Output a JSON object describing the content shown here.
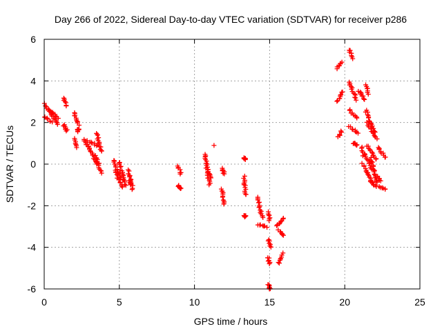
{
  "chart_data": {
    "type": "scatter",
    "title": "Day 266 of 2022, Sidereal Day-to-day VTEC variation (SDTVAR) for receiver p286",
    "xlabel": "GPS time / hours",
    "ylabel": "SDTVAR / TECUs",
    "xlim": [
      0,
      25
    ],
    "ylim": [
      -6,
      6
    ],
    "xticks": [
      0,
      5,
      10,
      15,
      20,
      25
    ],
    "yticks": [
      -6,
      -4,
      -2,
      0,
      2,
      4,
      6
    ],
    "xtick_labels": [
      "0",
      "5",
      "10",
      "15",
      "20",
      "25"
    ],
    "ytick_labels": [
      "-6",
      "-4",
      "-2",
      "0",
      "2",
      "4",
      "6"
    ],
    "grid": true,
    "marker": "+",
    "color": "#ff0000",
    "series": [
      {
        "name": "SDTVAR",
        "segments": [
          {
            "x0": 0.0,
            "x1": 0.5,
            "y0": 2.9,
            "y1": 2.4
          },
          {
            "x0": 0.0,
            "x1": 0.5,
            "y0": 2.3,
            "y1": 2.0
          },
          {
            "x0": 0.3,
            "x1": 0.9,
            "y0": 2.6,
            "y1": 1.9
          },
          {
            "x0": 0.5,
            "x1": 0.9,
            "y0": 2.5,
            "y1": 2.2
          },
          {
            "x0": 1.3,
            "x1": 1.5,
            "y0": 3.2,
            "y1": 2.8
          },
          {
            "x0": 1.3,
            "x1": 1.5,
            "y0": 1.9,
            "y1": 1.6
          },
          {
            "x0": 2.0,
            "x1": 2.3,
            "y0": 2.5,
            "y1": 1.9
          },
          {
            "x0": 2.2,
            "x1": 2.3,
            "y0": 1.6,
            "y1": 1.7
          },
          {
            "x0": 2.0,
            "x1": 2.2,
            "y0": 1.2,
            "y1": 0.8
          },
          {
            "x0": 2.6,
            "x1": 3.0,
            "y0": 1.2,
            "y1": 0.8
          },
          {
            "x0": 2.9,
            "x1": 3.6,
            "y0": 1.1,
            "y1": 0.9
          },
          {
            "x0": 3.0,
            "x1": 3.5,
            "y0": 0.8,
            "y1": 0.0
          },
          {
            "x0": 3.4,
            "x1": 3.8,
            "y0": 0.4,
            "y1": -0.4
          },
          {
            "x0": 3.5,
            "x1": 3.8,
            "y0": 1.5,
            "y1": 0.6
          },
          {
            "x0": 4.6,
            "x1": 5.0,
            "y0": 0.2,
            "y1": -0.5
          },
          {
            "x0": 4.7,
            "x1": 5.2,
            "y0": -0.3,
            "y1": -1.1
          },
          {
            "x0": 5.0,
            "x1": 5.3,
            "y0": 0.1,
            "y1": -0.8
          },
          {
            "x0": 5.1,
            "x1": 5.4,
            "y0": -0.6,
            "y1": -1.0
          },
          {
            "x0": 5.6,
            "x1": 5.9,
            "y0": -0.3,
            "y1": -1.2
          },
          {
            "x0": 5.7,
            "x1": 5.8,
            "y0": -0.8,
            "y1": -1.0
          },
          {
            "x0": 8.9,
            "x1": 9.1,
            "y0": -0.1,
            "y1": -0.5
          },
          {
            "x0": 8.9,
            "x1": 9.1,
            "y0": -1.0,
            "y1": -1.2
          },
          {
            "x0": 10.7,
            "x1": 11.0,
            "y0": 0.5,
            "y1": -1.0
          },
          {
            "x0": 10.8,
            "x1": 11.1,
            "y0": -0.2,
            "y1": -0.7
          },
          {
            "x0": 11.8,
            "x1": 12.0,
            "y0": -0.2,
            "y1": -0.5
          },
          {
            "x0": 11.8,
            "x1": 12.0,
            "y0": -1.2,
            "y1": -1.9
          },
          {
            "x0": 13.3,
            "x1": 13.4,
            "y0": 0.3,
            "y1": 0.2
          },
          {
            "x0": 13.3,
            "x1": 13.4,
            "y0": -0.6,
            "y1": -1.5
          },
          {
            "x0": 13.3,
            "x1": 13.4,
            "y0": -2.5,
            "y1": -2.5
          },
          {
            "x0": 14.2,
            "x1": 14.5,
            "y0": -1.6,
            "y1": -2.6
          },
          {
            "x0": 14.2,
            "x1": 14.8,
            "y0": -2.9,
            "y1": -3.0
          },
          {
            "x0": 14.9,
            "x1": 15.0,
            "y0": -2.3,
            "y1": -2.7
          },
          {
            "x0": 14.9,
            "x1": 15.1,
            "y0": -3.6,
            "y1": -4.0
          },
          {
            "x0": 14.9,
            "x1": 15.0,
            "y0": -4.5,
            "y1": -4.8
          },
          {
            "x0": 14.9,
            "x1": 15.0,
            "y0": -5.8,
            "y1": -6.0
          },
          {
            "x0": 15.5,
            "x1": 15.9,
            "y0": -3.0,
            "y1": -2.6
          },
          {
            "x0": 15.6,
            "x1": 15.9,
            "y0": -3.2,
            "y1": -3.4
          },
          {
            "x0": 15.6,
            "x1": 15.9,
            "y0": -4.8,
            "y1": -4.3
          },
          {
            "x0": 19.5,
            "x1": 19.8,
            "y0": 4.6,
            "y1": 4.9
          },
          {
            "x0": 19.5,
            "x1": 19.9,
            "y0": 3.0,
            "y1": 3.5
          },
          {
            "x0": 19.6,
            "x1": 19.8,
            "y0": 1.3,
            "y1": 1.6
          },
          {
            "x0": 20.3,
            "x1": 20.5,
            "y0": 5.5,
            "y1": 5.1
          },
          {
            "x0": 20.3,
            "x1": 20.8,
            "y0": 3.9,
            "y1": 3.1
          },
          {
            "x0": 20.3,
            "x1": 20.8,
            "y0": 2.6,
            "y1": 2.2
          },
          {
            "x0": 20.3,
            "x1": 20.9,
            "y0": 1.8,
            "y1": 1.5
          },
          {
            "x0": 20.6,
            "x1": 20.8,
            "y0": 1.0,
            "y1": 0.9
          },
          {
            "x0": 21.0,
            "x1": 21.3,
            "y0": 3.5,
            "y1": 3.1
          },
          {
            "x0": 21.1,
            "x1": 21.8,
            "y0": 0.8,
            "y1": -0.2
          },
          {
            "x0": 21.2,
            "x1": 21.8,
            "y0": 0.0,
            "y1": -0.9
          },
          {
            "x0": 21.4,
            "x1": 21.6,
            "y0": 3.8,
            "y1": 3.4
          },
          {
            "x0": 21.4,
            "x1": 22.0,
            "y0": 2.6,
            "y1": 1.5
          },
          {
            "x0": 21.5,
            "x1": 22.1,
            "y0": 2.0,
            "y1": 1.2
          },
          {
            "x0": 21.5,
            "x1": 22.1,
            "y0": 0.9,
            "y1": 0.2
          },
          {
            "x0": 21.7,
            "x1": 22.2,
            "y0": 0.3,
            "y1": -0.9
          },
          {
            "x0": 21.7,
            "x1": 22.1,
            "y0": -0.8,
            "y1": -1.1
          },
          {
            "x0": 22.0,
            "x1": 22.4,
            "y0": -0.5,
            "y1": -0.8
          },
          {
            "x0": 22.2,
            "x1": 22.7,
            "y0": 0.8,
            "y1": 0.3
          },
          {
            "x0": 22.3,
            "x1": 22.7,
            "y0": -1.1,
            "y1": -1.2
          }
        ],
        "extra_points": [
          [
            11.3,
            0.9
          ],
          [
            21.2,
            0.4
          ],
          [
            20.9,
            3.5
          ]
        ]
      }
    ]
  }
}
